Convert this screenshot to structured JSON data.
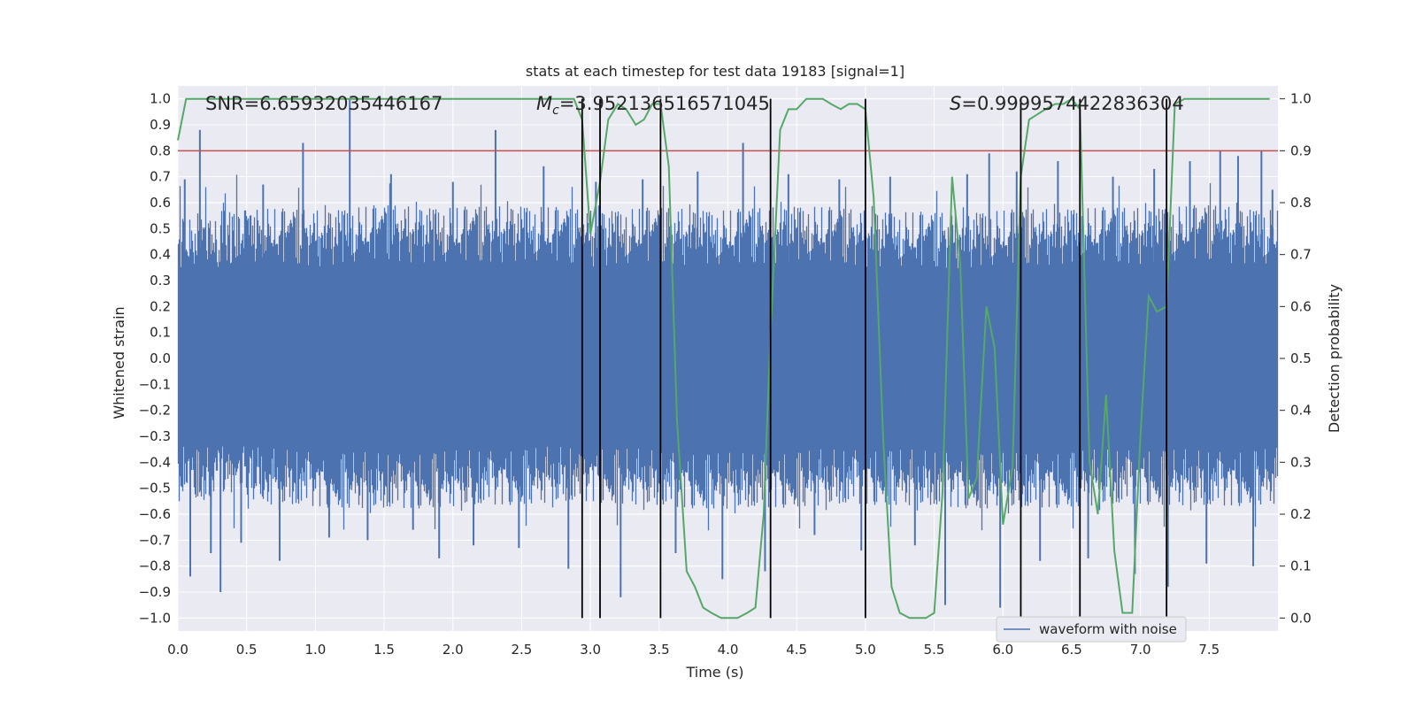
{
  "chart_data": {
    "type": "line",
    "title": "stats at each timestep for test data 19183 [signal=1]",
    "xlabel": "Time (s)",
    "ylabel": "Whitened strain",
    "y2label": "Detection probability",
    "xlim": [
      0,
      8
    ],
    "ylim": [
      -1.05,
      1.05
    ],
    "y2lim": [
      -0.025,
      1.025
    ],
    "xticks": [
      0.0,
      0.5,
      1.0,
      1.5,
      2.0,
      2.5,
      3.0,
      3.5,
      4.0,
      4.5,
      5.0,
      5.5,
      6.0,
      6.5,
      7.0,
      7.5
    ],
    "xtick_labels": [
      "0.0",
      "0.5",
      "1.0",
      "1.5",
      "2.0",
      "2.5",
      "3.0",
      "3.5",
      "4.0",
      "4.5",
      "5.0",
      "5.5",
      "6.0",
      "6.5",
      "7.0",
      "7.5"
    ],
    "yticks": [
      1.0,
      0.9,
      0.8,
      0.7,
      0.6,
      0.5,
      0.4,
      0.3,
      0.2,
      0.1,
      0.0,
      -0.1,
      -0.2,
      -0.3,
      -0.4,
      -0.5,
      -0.6,
      -0.7,
      -0.8,
      -0.9,
      -1.0
    ],
    "ytick_labels": [
      "1.0",
      "0.9",
      "0.8",
      "0.7",
      "0.6",
      "0.5",
      "0.4",
      "0.3",
      "0.2",
      "0.1",
      "0.0",
      "−0.1",
      "−0.2",
      "−0.3",
      "−0.4",
      "−0.5",
      "−0.6",
      "−0.7",
      "−0.8",
      "−0.9",
      "−1.0"
    ],
    "y2ticks": [
      1.0,
      0.9,
      0.8,
      0.7,
      0.6,
      0.5,
      0.4,
      0.3,
      0.2,
      0.1,
      0.0
    ],
    "y2tick_labels": [
      "1.0",
      "0.9",
      "0.8",
      "0.7",
      "0.6",
      "0.5",
      "0.4",
      "0.3",
      "0.2",
      "0.1",
      "0.0"
    ],
    "annotations": {
      "snr": "SNR=6.65932035446167",
      "mc_symbol": "M",
      "mc_sub": "c",
      "mc_value": "=3.952136516571045",
      "s_symbol": "S",
      "s_value": "=0.9999574422836304"
    },
    "legend": {
      "label": "waveform with noise",
      "placement": "lower-right"
    },
    "threshold": {
      "value": 0.9,
      "axis": "right",
      "color": "#c44e52"
    },
    "event_markers_x": [
      2.94,
      3.07,
      3.51,
      4.31,
      5.0,
      6.13,
      6.56,
      7.19
    ],
    "series": [
      {
        "name": "waveform with noise",
        "axis": "left",
        "color": "#4c72b0",
        "sample_rate": 2048,
        "envelope": {
          "x": [
            0.0,
            0.5,
            1.0,
            1.5,
            2.0,
            2.5,
            3.0,
            3.5,
            4.0,
            4.5,
            5.0,
            5.5,
            6.0,
            6.5,
            7.0,
            7.5,
            8.0
          ],
          "upper": [
            0.45,
            0.47,
            0.46,
            0.48,
            0.47,
            0.48,
            0.46,
            0.47,
            0.46,
            0.48,
            0.46,
            0.45,
            0.46,
            0.47,
            0.47,
            0.48,
            0.46
          ],
          "lower": [
            -0.44,
            -0.45,
            -0.46,
            -0.47,
            -0.46,
            -0.45,
            -0.44,
            -0.46,
            -0.47,
            -0.46,
            -0.45,
            -0.46,
            -0.47,
            -0.46,
            -0.45,
            -0.46,
            -0.45
          ]
        },
        "spikes": [
          {
            "x": 0.05,
            "y": 0.69
          },
          {
            "x": 0.09,
            "y": -0.84
          },
          {
            "x": 0.16,
            "y": 0.88
          },
          {
            "x": 0.24,
            "y": -0.75
          },
          {
            "x": 0.31,
            "y": -0.9
          },
          {
            "x": 0.46,
            "y": -0.71
          },
          {
            "x": 0.62,
            "y": 0.67
          },
          {
            "x": 0.74,
            "y": -0.78
          },
          {
            "x": 0.91,
            "y": 0.83
          },
          {
            "x": 1.1,
            "y": -0.69
          },
          {
            "x": 1.25,
            "y": 1.0
          },
          {
            "x": 1.38,
            "y": -0.7
          },
          {
            "x": 1.55,
            "y": 0.71
          },
          {
            "x": 1.71,
            "y": -0.66
          },
          {
            "x": 1.9,
            "y": -0.77
          },
          {
            "x": 2.0,
            "y": 0.68
          },
          {
            "x": 2.15,
            "y": -0.72
          },
          {
            "x": 2.31,
            "y": 0.88
          },
          {
            "x": 2.48,
            "y": -0.73
          },
          {
            "x": 2.66,
            "y": 0.74
          },
          {
            "x": 2.84,
            "y": -0.81
          },
          {
            "x": 3.04,
            "y": 0.68
          },
          {
            "x": 3.22,
            "y": -0.92
          },
          {
            "x": 3.38,
            "y": 0.69
          },
          {
            "x": 3.62,
            "y": -0.75
          },
          {
            "x": 3.78,
            "y": 0.72
          },
          {
            "x": 3.96,
            "y": -0.85
          },
          {
            "x": 4.11,
            "y": 0.83
          },
          {
            "x": 4.27,
            "y": -0.82
          },
          {
            "x": 4.44,
            "y": 0.71
          },
          {
            "x": 4.63,
            "y": -0.68
          },
          {
            "x": 4.81,
            "y": 0.69
          },
          {
            "x": 4.97,
            "y": -0.74
          },
          {
            "x": 5.18,
            "y": 0.7
          },
          {
            "x": 5.36,
            "y": -0.72
          },
          {
            "x": 5.58,
            "y": -0.95
          },
          {
            "x": 5.74,
            "y": 0.71
          },
          {
            "x": 5.9,
            "y": 0.79
          },
          {
            "x": 5.98,
            "y": -0.96
          },
          {
            "x": 6.1,
            "y": 0.72
          },
          {
            "x": 6.27,
            "y": -0.78
          },
          {
            "x": 6.4,
            "y": 0.76
          },
          {
            "x": 6.62,
            "y": -0.77
          },
          {
            "x": 6.8,
            "y": 0.7
          },
          {
            "x": 6.96,
            "y": -0.83
          },
          {
            "x": 7.1,
            "y": 0.73
          },
          {
            "x": 7.2,
            "y": -0.88
          },
          {
            "x": 7.36,
            "y": 0.76
          },
          {
            "x": 7.48,
            "y": -0.79
          },
          {
            "x": 7.58,
            "y": 0.8
          },
          {
            "x": 7.71,
            "y": 0.78
          },
          {
            "x": 7.82,
            "y": -0.8
          },
          {
            "x": 7.88,
            "y": 0.8
          },
          {
            "x": 7.96,
            "y": 0.65
          }
        ]
      },
      {
        "name": "detection probability",
        "axis": "right",
        "color": "#55a868",
        "x": [
          0.0,
          0.06,
          0.5,
          1.0,
          1.5,
          2.0,
          2.5,
          2.88,
          2.94,
          3.0,
          3.07,
          3.13,
          3.2,
          3.26,
          3.33,
          3.39,
          3.45,
          3.51,
          3.57,
          3.63,
          3.7,
          3.76,
          3.82,
          3.88,
          3.95,
          4.01,
          4.07,
          4.14,
          4.2,
          4.26,
          4.31,
          4.38,
          4.44,
          4.5,
          4.57,
          4.63,
          4.69,
          4.75,
          4.82,
          4.88,
          4.94,
          5.0,
          5.06,
          5.13,
          5.19,
          5.25,
          5.32,
          5.38,
          5.44,
          5.5,
          5.56,
          5.63,
          5.69,
          5.75,
          5.81,
          5.88,
          5.94,
          6.0,
          6.07,
          6.13,
          6.19,
          6.25,
          6.31,
          6.38,
          6.44,
          6.5,
          6.56,
          6.63,
          6.69,
          6.75,
          6.81,
          6.87,
          6.94,
          7.0,
          7.06,
          7.12,
          7.19,
          7.25,
          7.32,
          7.5,
          7.75,
          7.94
        ],
        "y": [
          0.92,
          1.0,
          1.0,
          1.0,
          1.0,
          1.0,
          1.0,
          1.0,
          0.96,
          0.74,
          0.84,
          0.96,
          0.99,
          0.98,
          0.95,
          0.96,
          0.99,
          0.99,
          0.87,
          0.38,
          0.09,
          0.06,
          0.02,
          0.01,
          0.0,
          0.0,
          0.0,
          0.01,
          0.02,
          0.2,
          0.55,
          0.94,
          0.98,
          0.98,
          1.0,
          1.0,
          1.0,
          0.99,
          0.98,
          0.99,
          0.99,
          0.98,
          0.81,
          0.34,
          0.06,
          0.01,
          0.0,
          0.0,
          0.0,
          0.01,
          0.24,
          0.85,
          0.68,
          0.23,
          0.27,
          0.6,
          0.52,
          0.18,
          0.29,
          0.85,
          0.96,
          0.97,
          0.98,
          0.99,
          0.99,
          1.0,
          0.98,
          0.3,
          0.2,
          0.43,
          0.13,
          0.01,
          0.01,
          0.35,
          0.62,
          0.59,
          0.6,
          0.99,
          1.0,
          1.0,
          1.0,
          1.0
        ]
      }
    ]
  }
}
